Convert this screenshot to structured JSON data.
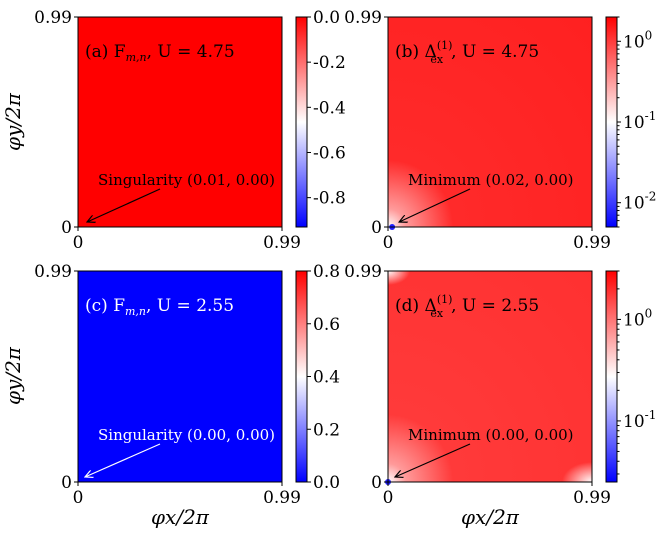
{
  "figure": {
    "ylabel": "φy/2π",
    "xlabel": "φx/2π"
  },
  "chart_data": [
    {
      "type": "heatmap",
      "panel_label": "(a) F",
      "label_sub": "m,n",
      "label_tail": ", U = 4.75",
      "xlim": [
        0,
        0.99
      ],
      "ylim": [
        0,
        0.99
      ],
      "x_ticks": [
        "0",
        "0.99"
      ],
      "y_ticks": [
        "0",
        "0.99"
      ],
      "fill": "uniform",
      "value": 0.0,
      "annotation": {
        "text": "Singularity (0.01, 0.00)",
        "point": [
          0.01,
          0.0
        ]
      },
      "colorbar": {
        "scale": "linear",
        "range": [
          -0.93,
          0.0
        ],
        "ticks": [
          "0.0",
          "-0.2",
          "-0.4",
          "-0.6",
          "-0.8"
        ],
        "tick_values": [
          0.0,
          -0.2,
          -0.4,
          -0.6,
          -0.8
        ]
      },
      "colormap": [
        "#0000ff",
        "#ffffff",
        "#ff0000"
      ]
    },
    {
      "type": "heatmap",
      "panel_label": "(b) Δ",
      "label_sup": "(1)",
      "label_sub": "ex",
      "label_tail": ", U = 4.75",
      "xlim": [
        0,
        0.99
      ],
      "ylim": [
        0,
        0.99
      ],
      "x_ticks": [
        "0",
        "0.99"
      ],
      "y_ticks": [
        "0",
        "0.99"
      ],
      "fill": "gradient",
      "annotation": {
        "text": "Minimum (0.02, 0.00)",
        "point": [
          0.02,
          0.0
        ]
      },
      "colorbar": {
        "scale": "log",
        "range": [
          0.005,
          2.0
        ],
        "ticks": [
          "10",
          "10",
          "10"
        ],
        "tick_exponents": [
          "0",
          "-1",
          "-2"
        ],
        "tick_values": [
          1,
          0.1,
          0.01
        ]
      },
      "colormap": [
        "#0000ff",
        "#ffffff",
        "#ff0000"
      ]
    },
    {
      "type": "heatmap",
      "panel_label": "(c) F",
      "label_sub": "m,n",
      "label_tail": ", U = 2.55",
      "xlim": [
        0,
        0.99
      ],
      "ylim": [
        0,
        0.99
      ],
      "x_ticks": [
        "0",
        "0.99"
      ],
      "y_ticks": [
        "0",
        "0.99"
      ],
      "fill": "uniform",
      "value": 0.0,
      "annotation": {
        "text": "Singularity (0.00, 0.00)",
        "point": [
          0.0,
          0.0
        ]
      },
      "colorbar": {
        "scale": "linear",
        "range": [
          0.0,
          0.8
        ],
        "ticks": [
          "0.8",
          "0.6",
          "0.4",
          "0.2",
          "0.0"
        ],
        "tick_values": [
          0.8,
          0.6,
          0.4,
          0.2,
          0.0
        ]
      },
      "colormap": [
        "#0000ff",
        "#ffffff",
        "#ff0000"
      ]
    },
    {
      "type": "heatmap",
      "panel_label": "(d) Δ",
      "label_sup": "(1)",
      "label_sub": "ex",
      "label_tail": ", U = 2.55",
      "xlim": [
        0,
        0.99
      ],
      "ylim": [
        0,
        0.99
      ],
      "x_ticks": [
        "0",
        "0.99"
      ],
      "y_ticks": [
        "0",
        "0.99"
      ],
      "fill": "gradient",
      "annotation": {
        "text": "Minimum (0.00, 0.00)",
        "point": [
          0.0,
          0.0
        ]
      },
      "colorbar": {
        "scale": "log",
        "range": [
          0.025,
          3.0
        ],
        "ticks": [
          "10",
          "10"
        ],
        "tick_exponents": [
          "0",
          "-1"
        ],
        "tick_values": [
          1,
          0.1
        ]
      },
      "colormap": [
        "#0000ff",
        "#ffffff",
        "#ff0000"
      ]
    }
  ]
}
